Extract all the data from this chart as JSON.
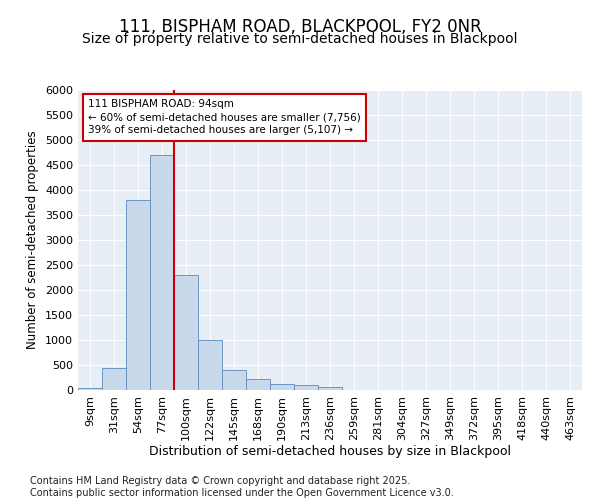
{
  "title1": "111, BISPHAM ROAD, BLACKPOOL, FY2 0NR",
  "title2": "Size of property relative to semi-detached houses in Blackpool",
  "xlabel": "Distribution of semi-detached houses by size in Blackpool",
  "ylabel": "Number of semi-detached properties",
  "categories": [
    "9sqm",
    "31sqm",
    "54sqm",
    "77sqm",
    "100sqm",
    "122sqm",
    "145sqm",
    "168sqm",
    "190sqm",
    "213sqm",
    "236sqm",
    "259sqm",
    "281sqm",
    "304sqm",
    "327sqm",
    "349sqm",
    "372sqm",
    "395sqm",
    "418sqm",
    "440sqm",
    "463sqm"
  ],
  "values": [
    50,
    450,
    3800,
    4700,
    2300,
    1000,
    400,
    225,
    125,
    100,
    60,
    10,
    10,
    0,
    0,
    0,
    0,
    0,
    0,
    0,
    0
  ],
  "bar_color": "#c9d9ec",
  "bar_edge_color": "#5a8bbf",
  "vline_color": "#cc0000",
  "annotation_line1": "111 BISPHAM ROAD: 94sqm",
  "annotation_line2": "← 60% of semi-detached houses are smaller (7,756)",
  "annotation_line3": "39% of semi-detached houses are larger (5,107) →",
  "annotation_box_color": "#cc0000",
  "ylim": [
    0,
    6000
  ],
  "yticks": [
    0,
    500,
    1000,
    1500,
    2000,
    2500,
    3000,
    3500,
    4000,
    4500,
    5000,
    5500,
    6000
  ],
  "background_color": "#e8eef5",
  "footer": "Contains HM Land Registry data © Crown copyright and database right 2025.\nContains public sector information licensed under the Open Government Licence v3.0.",
  "title1_fontsize": 12,
  "title2_fontsize": 10,
  "xlabel_fontsize": 9,
  "ylabel_fontsize": 8.5,
  "tick_fontsize": 8,
  "footer_fontsize": 7,
  "vline_pos": 3.5
}
